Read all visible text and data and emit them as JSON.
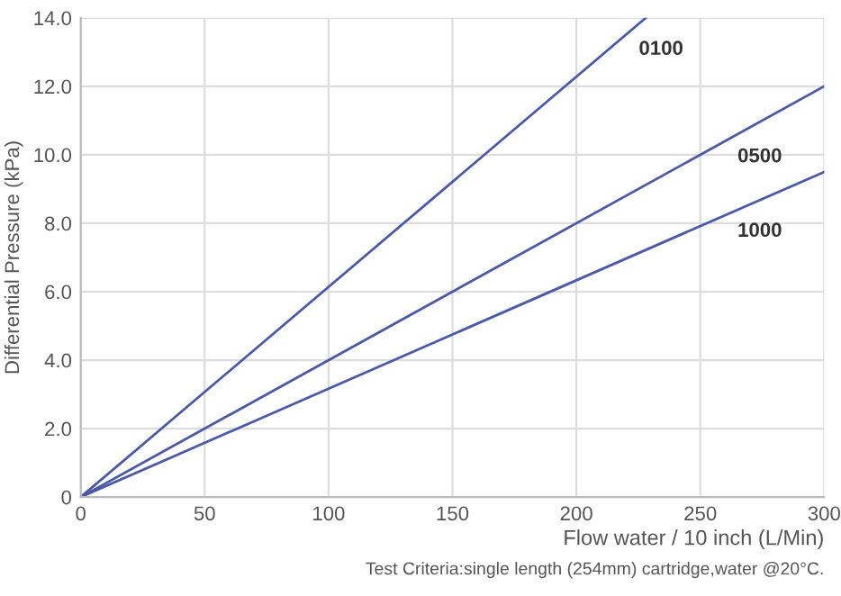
{
  "chart_data": {
    "type": "line",
    "ylabel": "Differential Pressure (kPa)",
    "xlabel": "Flow water / 10 inch (L/Min)",
    "annotations": [
      "Test Criteria:single length (254mm) cartridge,water @20°C."
    ],
    "series": [
      {
        "name": "0100",
        "color": "#4a5aa8",
        "x": [
          0,
          228
        ],
        "values": [
          0,
          14.0
        ]
      },
      {
        "name": "0500",
        "color": "#4a5aa8",
        "x": [
          0,
          300
        ],
        "values": [
          0,
          12.0
        ]
      },
      {
        "name": "1000",
        "color": "#4a5aa8",
        "x": [
          0,
          300
        ],
        "values": [
          0,
          9.5
        ]
      }
    ],
    "xlim": [
      0,
      300
    ],
    "xticks": [
      0,
      50,
      100,
      150,
      200,
      250,
      300
    ],
    "ylim": [
      0,
      14
    ],
    "yticks": [
      {
        "value": 0,
        "label": "0"
      },
      {
        "value": 2,
        "label": "2.0"
      },
      {
        "value": 4,
        "label": "4.0"
      },
      {
        "value": 6,
        "label": "6.0"
      },
      {
        "value": 8,
        "label": "8.0"
      },
      {
        "value": 10,
        "label": "10.0"
      },
      {
        "value": 12,
        "label": "12.0"
      },
      {
        "value": 14,
        "label": "14.0"
      }
    ],
    "grid": true,
    "legend": false,
    "marker": "none",
    "line_style": "solid"
  }
}
